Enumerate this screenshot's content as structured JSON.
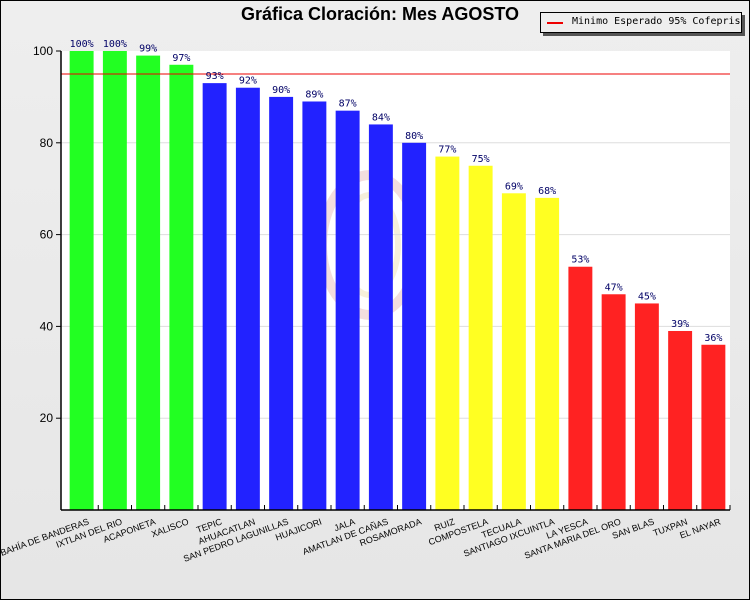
{
  "chart_data": {
    "type": "bar",
    "title": "Gráfica Cloración: Mes AGOSTO",
    "xlabel": "",
    "ylabel": "",
    "ylim": [
      0,
      100
    ],
    "yticks": [
      20,
      40,
      60,
      80,
      100
    ],
    "grid": true,
    "legend_position": "top-right",
    "legend": [
      {
        "label": "Minimo Esperado 95% Cofepris",
        "color": "#ee0000"
      }
    ],
    "reference_line": {
      "value": 95,
      "color": "#ee0000"
    },
    "categories": [
      "BAHÍA DE BANDERAS",
      "IXTLAN DEL RIO",
      "ACAPONETA",
      "XALISCO",
      "TEPIC",
      "AHUACATLAN",
      "SAN PEDRO LAGUNILLAS",
      "HUAJICORI",
      "JALA",
      "AMATLAN DE CAÑAS",
      "ROSAMORADA",
      "RUIZ",
      "COMPOSTELA",
      "TECUALA",
      "SANTIAGO IXCUINTLA",
      "LA YESCA",
      "SANTA MARIA DEL ORO",
      "SAN BLAS",
      "TUXPAN",
      "EL NAYAR"
    ],
    "values": [
      100,
      100,
      99,
      97,
      93,
      92,
      90,
      89,
      87,
      84,
      80,
      77,
      75,
      69,
      68,
      53,
      47,
      45,
      39,
      36
    ],
    "value_labels": [
      "100%",
      "100%",
      "99%",
      "97%",
      "93%",
      "92%",
      "90%",
      "89%",
      "87%",
      "84%",
      "80%",
      "77%",
      "75%",
      "69%",
      "68%",
      "53%",
      "47%",
      "45%",
      "39%",
      "36%"
    ],
    "bar_colors": [
      "#22ff22",
      "#22ff22",
      "#22ff22",
      "#22ff22",
      "#2222ff",
      "#2222ff",
      "#2222ff",
      "#2222ff",
      "#2222ff",
      "#2222ff",
      "#2222ff",
      "#ffff22",
      "#ffff22",
      "#ffff22",
      "#ffff22",
      "#ff2222",
      "#ff2222",
      "#ff2222",
      "#ff2222",
      "#ff2222"
    ]
  }
}
